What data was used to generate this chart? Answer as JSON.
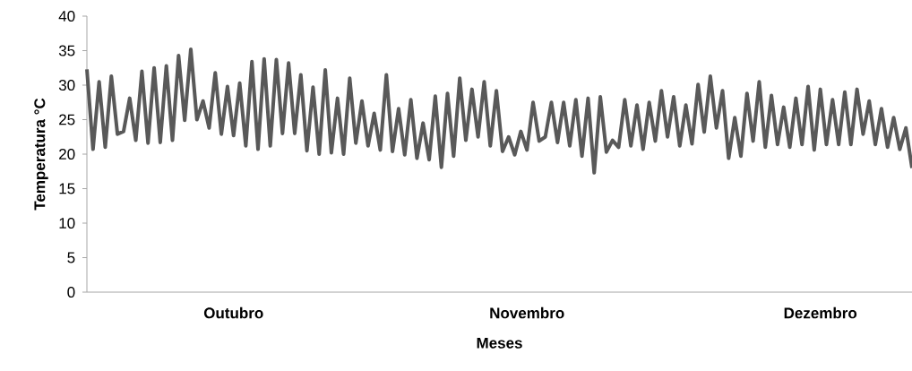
{
  "chart_data": {
    "type": "line",
    "xlabel": "Meses",
    "ylabel": "Temperatura °C",
    "color": "#595959",
    "marker": "none",
    "line_style": "solid",
    "ylim": [
      0,
      40
    ],
    "yticks": [
      0,
      5,
      10,
      15,
      20,
      25,
      30,
      35,
      40
    ],
    "categories": [
      null,
      null,
      null,
      null,
      null,
      null,
      null,
      null,
      null,
      null,
      null,
      null,
      null,
      null,
      null,
      null,
      null,
      null,
      null,
      null,
      null,
      null,
      null,
      null,
      "Outubro",
      null,
      null,
      null,
      null,
      null,
      null,
      null,
      null,
      null,
      null,
      null,
      null,
      null,
      null,
      null,
      null,
      null,
      null,
      null,
      null,
      null,
      null,
      null,
      null,
      null,
      null,
      null,
      null,
      null,
      null,
      null,
      null,
      null,
      null,
      null,
      null,
      null,
      null,
      null,
      null,
      null,
      null,
      null,
      null,
      null,
      null,
      null,
      "Novembro",
      null,
      null,
      null,
      null,
      null,
      null,
      null,
      null,
      null,
      null,
      null,
      null,
      null,
      null,
      null,
      null,
      null,
      null,
      null,
      null,
      null,
      null,
      null,
      null,
      null,
      null,
      null,
      null,
      null,
      null,
      null,
      null,
      null,
      null,
      null,
      null,
      null,
      null,
      null,
      null,
      null,
      null,
      null,
      null,
      null,
      null,
      null,
      "Dezembro",
      null,
      null,
      null,
      null,
      null,
      null,
      null,
      null,
      null,
      null,
      null,
      null,
      null,
      null,
      null
    ],
    "values": [
      32.3,
      20.7,
      30.5,
      21,
      31.3,
      22.9,
      23.3,
      28.1,
      22,
      32,
      21.6,
      32.5,
      21.7,
      32.8,
      22,
      34.3,
      24.9,
      35.2,
      25,
      27.7,
      23.8,
      31.8,
      22.9,
      29.8,
      22.7,
      30.3,
      21.2,
      33.4,
      20.7,
      33.8,
      21.2,
      33.7,
      23,
      33.2,
      23,
      31.5,
      20.5,
      29.7,
      20,
      32.2,
      20.2,
      28.1,
      20,
      31,
      21.6,
      27.7,
      21.2,
      25.9,
      20.6,
      31.5,
      20.4,
      26.6,
      19.9,
      27.9,
      19.4,
      24.5,
      19.2,
      28.4,
      18.1,
      28.8,
      19.7,
      31,
      22,
      29.4,
      22.5,
      30.5,
      21.2,
      29.2,
      20.4,
      22.5,
      19.9,
      23.3,
      20.6,
      27.5,
      21.9,
      22.5,
      27.5,
      21.7,
      27.5,
      21.2,
      27.9,
      19.7,
      28.1,
      17.3,
      28.3,
      20.3,
      22,
      21,
      27.9,
      21.2,
      27.1,
      20.7,
      27.5,
      21.9,
      29.2,
      22.5,
      28.3,
      21.2,
      27.1,
      21.5,
      30.1,
      23.2,
      31.3,
      23.8,
      29.2,
      19.4,
      25.3,
      19.7,
      28.8,
      21.9,
      30.5,
      21,
      28.5,
      21.4,
      26.8,
      21,
      28.1,
      21.4,
      29.8,
      20.6,
      29.4,
      21.4,
      27.9,
      21.4,
      29,
      21.4,
      29.4,
      22.9,
      27.7,
      21.4,
      26.6,
      21,
      25.3,
      20.7,
      23.8,
      18
    ]
  }
}
